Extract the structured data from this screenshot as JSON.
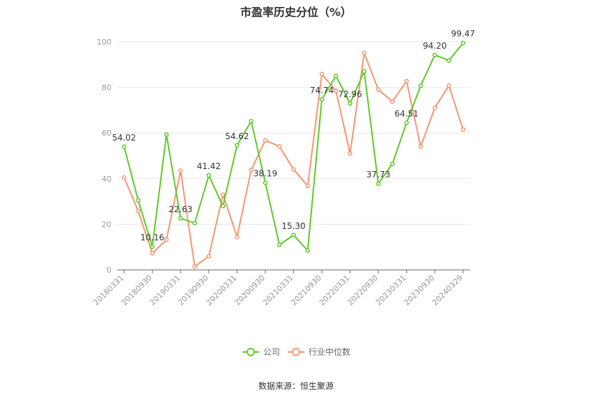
{
  "chart_data": {
    "type": "line",
    "title": "市盈率历史分位（%）",
    "source": "数据来源：恒生聚源",
    "ylim": [
      0,
      100
    ],
    "yticks": [
      0,
      20,
      40,
      60,
      80,
      100
    ],
    "xtick_labels": [
      "20180331",
      "20180930",
      "20190331",
      "20190930",
      "20200331",
      "20200930",
      "20210331",
      "20210930",
      "20220331",
      "20220930",
      "20230331",
      "20230930",
      "20240329"
    ],
    "xtick_positions": [
      0,
      2,
      4,
      6,
      8,
      10,
      12,
      14,
      16,
      18,
      20,
      22,
      24
    ],
    "grid": true,
    "legend_position": "bottom",
    "series": [
      {
        "name": "公司",
        "color": "#5ec928",
        "values": [
          54.02,
          30.5,
          10.16,
          59.3,
          22.63,
          20.5,
          41.42,
          28.0,
          54.62,
          65.2,
          38.19,
          11.0,
          15.3,
          8.5,
          74.74,
          85.0,
          72.96,
          87.0,
          37.73,
          46.5,
          64.51,
          80.7,
          94.2,
          91.8,
          99.47
        ],
        "labels": {
          "0": "54.02",
          "2": "10.16",
          "4": "22.63",
          "6": "41.42",
          "8": "54.62",
          "10": "38.19",
          "12": "15.30",
          "14": "74.74",
          "16": "72.96",
          "18": "37.73",
          "20": "64.51",
          "22": "94.20",
          "24": "99.47"
        }
      },
      {
        "name": "行业中位数",
        "color": "#f6956f",
        "values": [
          40.5,
          25.8,
          7.3,
          13.2,
          43.5,
          1.5,
          6.0,
          33.0,
          14.5,
          43.8,
          56.8,
          54.1,
          44.0,
          36.8,
          85.8,
          78.5,
          51.0,
          95.0,
          79.0,
          73.8,
          82.7,
          54.0,
          71.0,
          80.8,
          61.5
        ]
      }
    ]
  }
}
